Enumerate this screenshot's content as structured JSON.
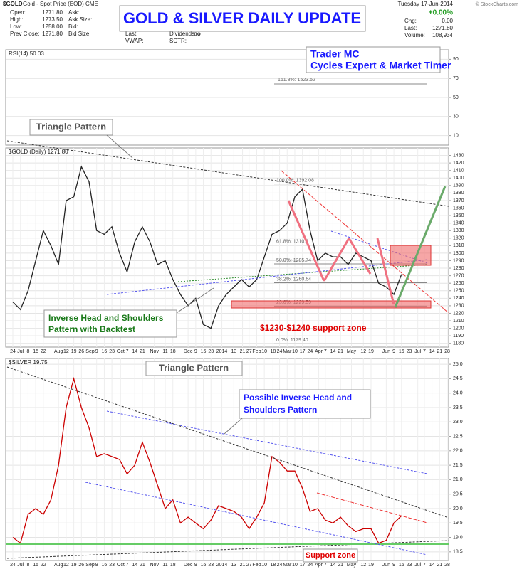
{
  "header": {
    "symbol": "$GOLD",
    "description": "Gold - Spot Price (EOD) CME",
    "fields": [
      [
        "Open:",
        "1271.80"
      ],
      [
        "High:",
        "1273.50"
      ],
      [
        "Low:",
        "1258.00"
      ],
      [
        "Prev Close:",
        "1271.80"
      ]
    ],
    "fields2": [
      "Ask:",
      "Ask Size:",
      "Bid:",
      "Bid Size:"
    ],
    "fields3": [
      "Last:",
      "VWAP:"
    ],
    "dividends": [
      "Dividends:",
      "no"
    ],
    "sctr": "SCTR:",
    "date": "Tuesday  17-Jun-2014",
    "change_pct": "+0.00%",
    "right_fields": [
      [
        "Chg:",
        "0.00"
      ],
      [
        "Last:",
        "1271.80"
      ],
      [
        "Volume:",
        "108,934"
      ]
    ],
    "copyright": "© StockCharts.com",
    "banner": "GOLD & SILVER DAILY UPDATE",
    "author": [
      "Trader MC",
      "Cycles Expert & Market Timer"
    ]
  },
  "chart_data": [
    {
      "type": "line",
      "title": "RSI(14) 50.03",
      "ylim": [
        0,
        100
      ],
      "yticks": [
        10,
        30,
        50,
        70,
        90
      ],
      "fib_extension": "161.8%: 1523.52",
      "annotations": [
        "Triangle Pattern"
      ]
    },
    {
      "type": "line",
      "xlim": [
        0,
        57
      ],
      "ylim": [
        1175,
        1440
      ],
      "yticks": [
        1180,
        1190,
        1200,
        1210,
        1220,
        1230,
        1240,
        1250,
        1260,
        1270,
        1280,
        1290,
        1300,
        1310,
        1320,
        1330,
        1340,
        1350,
        1360,
        1370,
        1380,
        1390,
        1400,
        1410,
        1420,
        1430
      ],
      "xticks": [
        {
          "value": 0,
          "label": "24"
        },
        {
          "value": 1,
          "label": "Jul"
        },
        {
          "value": 2,
          "label": "8"
        },
        {
          "value": 3,
          "label": "15"
        },
        {
          "value": 4,
          "label": "22"
        },
        {
          "value": 6,
          "label": "Aug"
        },
        {
          "value": 7,
          "label": "12"
        },
        {
          "value": 8,
          "label": "19"
        },
        {
          "value": 9,
          "label": "26"
        },
        {
          "value": 10.14,
          "label": "Sep"
        },
        {
          "value": 11,
          "label": "9"
        },
        {
          "value": 12,
          "label": "16"
        },
        {
          "value": 13,
          "label": "23"
        },
        {
          "value": 14.14,
          "label": "Oct"
        },
        {
          "value": 15,
          "label": "7"
        },
        {
          "value": 16,
          "label": "14"
        },
        {
          "value": 17,
          "label": "21"
        },
        {
          "value": 18.57,
          "label": "Nov"
        },
        {
          "value": 20,
          "label": "11"
        },
        {
          "value": 21,
          "label": "18"
        },
        {
          "value": 23,
          "label": "Dec"
        },
        {
          "value": 24,
          "label": "9"
        },
        {
          "value": 25,
          "label": "16"
        },
        {
          "value": 26,
          "label": "23"
        },
        {
          "value": 27.43,
          "label": "2014"
        },
        {
          "value": 29,
          "label": "13"
        },
        {
          "value": 30.14,
          "label": "21"
        },
        {
          "value": 31,
          "label": "27"
        },
        {
          "value": 32,
          "label": "Feb"
        },
        {
          "value": 33,
          "label": "10"
        },
        {
          "value": 34.14,
          "label": "18"
        },
        {
          "value": 35,
          "label": "24"
        },
        {
          "value": 36,
          "label": "Mar"
        },
        {
          "value": 37,
          "label": "10"
        },
        {
          "value": 38,
          "label": "17"
        },
        {
          "value": 39,
          "label": "24"
        },
        {
          "value": 40.14,
          "label": "Apr"
        },
        {
          "value": 41,
          "label": "7"
        },
        {
          "value": 42,
          "label": "14"
        },
        {
          "value": 43,
          "label": "21"
        },
        {
          "value": 44.43,
          "label": "May"
        },
        {
          "value": 46,
          "label": "12"
        },
        {
          "value": 47,
          "label": "19"
        },
        {
          "value": 49,
          "label": "Jun"
        },
        {
          "value": 50,
          "label": "9"
        },
        {
          "value": 51,
          "label": "16"
        },
        {
          "value": 52,
          "label": "23"
        },
        {
          "value": 53.14,
          "label": "Jul"
        },
        {
          "value": 54,
          "label": "7"
        },
        {
          "value": 55,
          "label": "14"
        },
        {
          "value": 56,
          "label": "21"
        },
        {
          "value": 57,
          "label": "28"
        }
      ],
      "grid": true,
      "x": [
        0,
        1,
        2,
        3,
        4,
        5,
        6,
        7,
        8,
        9,
        10,
        11,
        12,
        13,
        14,
        15,
        16,
        17,
        18,
        19,
        20,
        21,
        22,
        23,
        24,
        25,
        26,
        27,
        28,
        29,
        30,
        31,
        32,
        33,
        34,
        35,
        36,
        37,
        38,
        39,
        40,
        41,
        42,
        43,
        44,
        45,
        46,
        47,
        48,
        49,
        50,
        51
      ],
      "series": [
        {
          "name": "$GOLD (Daily) 1271.80",
          "color": "#222222",
          "values": [
            1235,
            1225,
            1250,
            1290,
            1330,
            1310,
            1285,
            1370,
            1375,
            1415,
            1395,
            1330,
            1325,
            1335,
            1300,
            1275,
            1315,
            1335,
            1315,
            1285,
            1290,
            1265,
            1245,
            1230,
            1240,
            1205,
            1200,
            1230,
            1245,
            1255,
            1265,
            1255,
            1265,
            1295,
            1325,
            1330,
            1340,
            1375,
            1385,
            1330,
            1290,
            1300,
            1295,
            1295,
            1285,
            1300,
            1295,
            1290,
            1260,
            1255,
            1245,
            1271.8
          ]
        }
      ],
      "fib_levels": [
        {
          "label": "100.0%: 1392.08",
          "value": 1392.08
        },
        {
          "label": "61.8%: 1310.8",
          "value": 1310.8
        },
        {
          "label": "50.0%: 1285.74",
          "value": 1285.74
        },
        {
          "label": "38.2%: 1260.64",
          "value": 1260.64
        },
        {
          "label": "23.6%: 1229.59",
          "value": 1229.59
        },
        {
          "label": "0.0%: 1179.40",
          "value": 1179.4
        }
      ],
      "annotations": [
        "Inverse Head and Shoulders",
        "Pattern with Backtest",
        "$1230-$1240 support zone"
      ]
    },
    {
      "type": "line",
      "xlim": [
        0,
        57
      ],
      "ylim": [
        18.2,
        25.2
      ],
      "yticks": [
        18.5,
        {
          "value": 19,
          "label": "19.0"
        },
        19.5,
        {
          "value": 20,
          "label": "20.0"
        },
        20.5,
        {
          "value": 21,
          "label": "21.0"
        },
        21.5,
        {
          "value": 22,
          "label": "22.0"
        },
        22.5,
        {
          "value": 23,
          "label": "23.0"
        },
        23.5,
        {
          "value": 24,
          "label": "24.0"
        },
        24.5,
        {
          "value": 25,
          "label": "25.0"
        }
      ],
      "grid": true,
      "x": [
        0,
        1,
        2,
        3,
        4,
        5,
        6,
        7,
        8,
        9,
        10,
        11,
        12,
        13,
        14,
        15,
        16,
        17,
        18,
        19,
        20,
        21,
        22,
        23,
        24,
        25,
        26,
        27,
        28,
        29,
        30,
        31,
        32,
        33,
        34,
        35,
        36,
        37,
        38,
        39,
        40,
        41,
        42,
        43,
        44,
        45,
        46,
        47,
        48,
        49,
        50,
        51
      ],
      "series": [
        {
          "name": "$SILVER 19.75",
          "color": "#cc0000",
          "values": [
            19.0,
            18.8,
            19.8,
            20.0,
            19.8,
            20.3,
            21.5,
            23.5,
            24.5,
            23.5,
            22.8,
            21.8,
            21.9,
            21.8,
            21.7,
            21.2,
            21.5,
            22.3,
            21.6,
            20.8,
            20.0,
            20.3,
            19.5,
            19.7,
            19.5,
            19.3,
            19.6,
            20.1,
            20.0,
            19.9,
            19.7,
            19.3,
            19.7,
            20.2,
            21.8,
            21.6,
            21.3,
            21.3,
            20.7,
            19.9,
            20.0,
            19.6,
            19.5,
            19.7,
            19.4,
            19.2,
            19.3,
            19.3,
            18.8,
            18.9,
            19.5,
            19.75
          ]
        }
      ],
      "annotations": [
        "Triangle Pattern",
        "Possible Inverse Head and",
        "Shoulders Pattern",
        "Support zone"
      ]
    }
  ]
}
